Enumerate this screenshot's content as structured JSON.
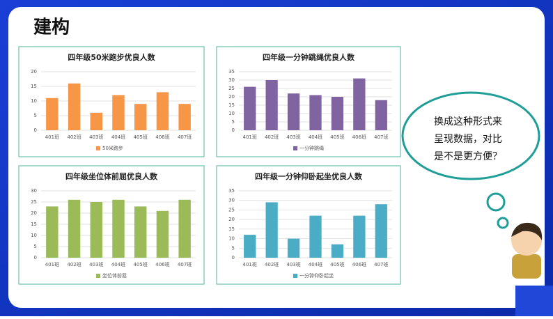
{
  "title": "建构",
  "bubble": {
    "lines": [
      "换成这种形式来",
      "呈现数据，对比",
      "是不是更方便？"
    ]
  },
  "chart_data": [
    {
      "type": "bar",
      "title": "四年级50米跑步优良人数",
      "categories": [
        "401班",
        "402班",
        "403班",
        "404班",
        "405班",
        "406班",
        "407班"
      ],
      "series": [
        {
          "name": "50米跑步",
          "color": "#f79646",
          "values": [
            11,
            16,
            6,
            12,
            9,
            13,
            9
          ]
        }
      ],
      "ylim": [
        0,
        20
      ],
      "yticks": [
        0,
        5,
        10,
        15,
        20
      ],
      "grid": true
    },
    {
      "type": "bar",
      "title": "四年级一分钟跳绳优良人数",
      "categories": [
        "401班",
        "402班",
        "403班",
        "404班",
        "405班",
        "406班",
        "407班"
      ],
      "series": [
        {
          "name": "一分钟跳绳",
          "color": "#8064a2",
          "values": [
            26,
            30,
            22,
            21,
            20,
            31,
            18
          ]
        }
      ],
      "ylim": [
        0,
        35
      ],
      "yticks": [
        0,
        5,
        10,
        15,
        20,
        25,
        30,
        35
      ],
      "grid": true
    },
    {
      "type": "bar",
      "title": "四年级坐位体前屈优良人数",
      "categories": [
        "401班",
        "402班",
        "403班",
        "404班",
        "405班",
        "406班",
        "407班"
      ],
      "series": [
        {
          "name": "坐位体前屈",
          "color": "#9bbb59",
          "values": [
            23,
            26,
            25,
            26,
            23,
            21,
            26
          ]
        }
      ],
      "ylim": [
        0,
        30
      ],
      "yticks": [
        0,
        5,
        10,
        15,
        20,
        25,
        30
      ],
      "grid": true
    },
    {
      "type": "bar",
      "title": "四年级一分钟仰卧起坐优良人数",
      "categories": [
        "401班",
        "402班",
        "403班",
        "404班",
        "405班",
        "406班",
        "407班"
      ],
      "series": [
        {
          "name": "一分钟仰卧起坐",
          "color": "#4bacc6",
          "values": [
            12,
            29,
            10,
            22,
            7,
            22,
            28
          ]
        }
      ],
      "ylim": [
        0,
        35
      ],
      "yticks": [
        0,
        5,
        10,
        15,
        20,
        25,
        30,
        35
      ],
      "grid": true
    }
  ]
}
